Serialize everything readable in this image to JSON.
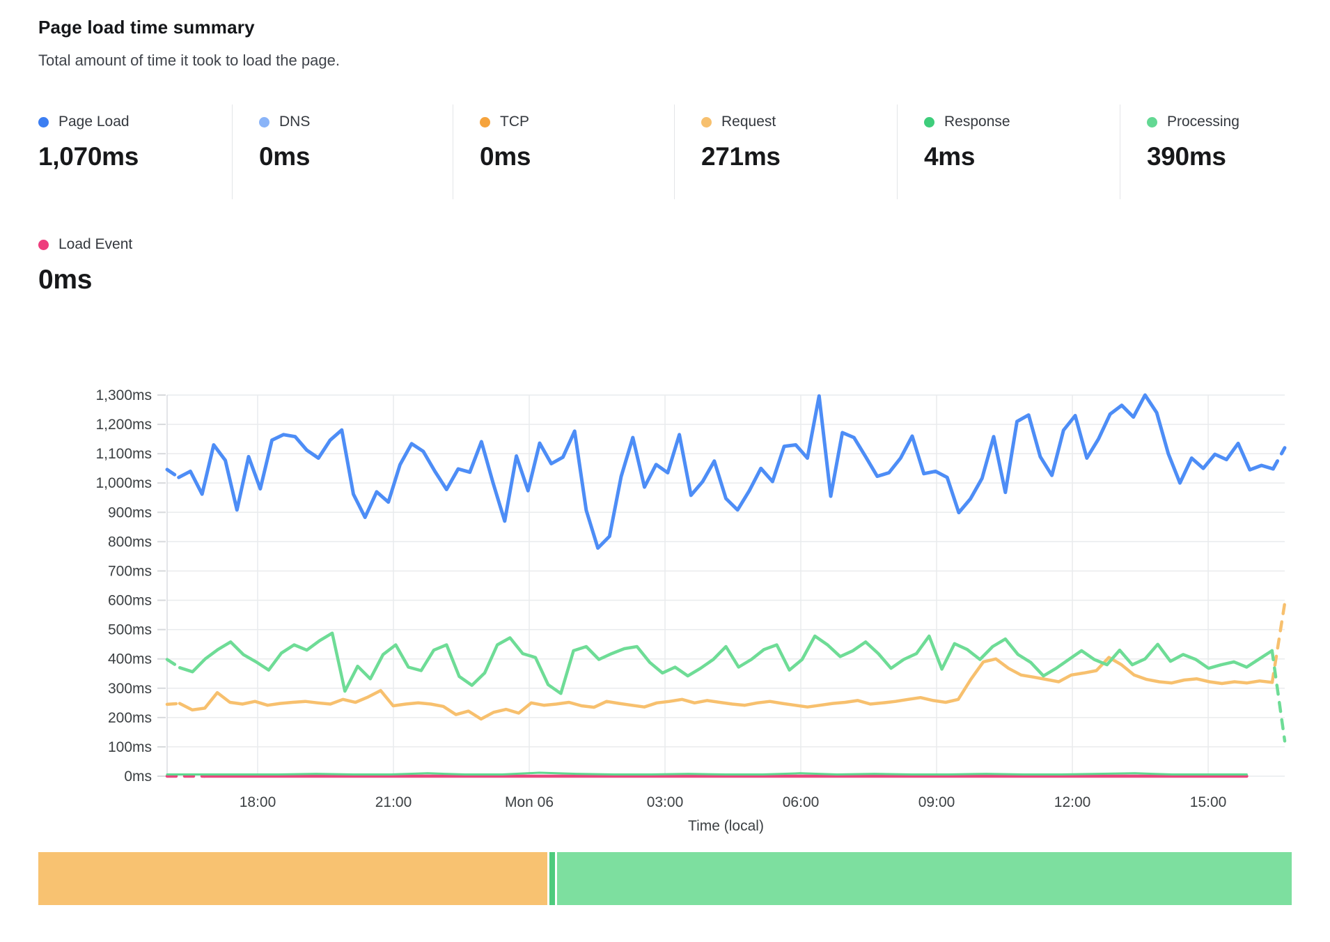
{
  "header": {
    "title": "Page load time summary",
    "subtitle": "Total amount of time it took to load the page."
  },
  "stats": [
    {
      "label": "Page Load",
      "value": "1,070ms",
      "color": "#3c7ef2"
    },
    {
      "label": "DNS",
      "value": "0ms",
      "color": "#8ab4f8"
    },
    {
      "label": "TCP",
      "value": "0ms",
      "color": "#f5a33c"
    },
    {
      "label": "Request",
      "value": "271ms",
      "color": "#f7c06e"
    },
    {
      "label": "Response",
      "value": "4ms",
      "color": "#3ecd7b"
    },
    {
      "label": "Processing",
      "value": "390ms",
      "color": "#63d893"
    }
  ],
  "stats_row2": [
    {
      "label": "Load Event",
      "value": "0ms",
      "color": "#ee3d7d"
    }
  ],
  "chart_data": {
    "type": "line",
    "title": "Page load time summary",
    "xlabel": "Time (local)",
    "ylabel": "ms",
    "ylim": [
      0,
      1300
    ],
    "grid": true,
    "legend_position": "top",
    "y_ticks": [
      {
        "v": 0,
        "label": "0ms"
      },
      {
        "v": 100,
        "label": "100ms"
      },
      {
        "v": 200,
        "label": "200ms"
      },
      {
        "v": 300,
        "label": "300ms"
      },
      {
        "v": 400,
        "label": "400ms"
      },
      {
        "v": 500,
        "label": "500ms"
      },
      {
        "v": 600,
        "label": "600ms"
      },
      {
        "v": 700,
        "label": "700ms"
      },
      {
        "v": 800,
        "label": "800ms"
      },
      {
        "v": 900,
        "label": "900ms"
      },
      {
        "v": 1000,
        "label": "1,000ms"
      },
      {
        "v": 1100,
        "label": "1,100ms"
      },
      {
        "v": 1200,
        "label": "1,200ms"
      },
      {
        "v": 1300,
        "label": "1,300ms"
      }
    ],
    "x_ticks": [
      {
        "label": "18:00",
        "f": 0.081
      },
      {
        "label": "21:00",
        "f": 0.2025
      },
      {
        "label": "Mon 06",
        "f": 0.324
      },
      {
        "label": "03:00",
        "f": 0.4455
      },
      {
        "label": "06:00",
        "f": 0.567
      },
      {
        "label": "09:00",
        "f": 0.6885
      },
      {
        "label": "12:00",
        "f": 0.81
      },
      {
        "label": "15:00",
        "f": 0.9315
      }
    ],
    "series": [
      {
        "name": "Request",
        "color": "#f7c06e",
        "width": 4.5,
        "dash_head": true,
        "dash_tail": true,
        "x_start": 0,
        "x_end": 1,
        "values": [
          245,
          248,
          226,
          232,
          285,
          252,
          246,
          255,
          242,
          248,
          252,
          255,
          250,
          246,
          262,
          252,
          270,
          292,
          240,
          246,
          250,
          246,
          238,
          210,
          222,
          195,
          218,
          228,
          215,
          250,
          242,
          246,
          252,
          240,
          235,
          255,
          248,
          242,
          236,
          250,
          255,
          262,
          250,
          258,
          252,
          246,
          242,
          250,
          255,
          248,
          242,
          236,
          242,
          248,
          252,
          258,
          246,
          250,
          255,
          262,
          268,
          258,
          252,
          262,
          330,
          390,
          400,
          368,
          345,
          338,
          330,
          322,
          345,
          352,
          360,
          405,
          380,
          345,
          330,
          322,
          318,
          328,
          332,
          322,
          316,
          322,
          318,
          325,
          320,
          590
        ]
      },
      {
        "name": "Processing",
        "color": "#6edc96",
        "width": 4.5,
        "dash_head": true,
        "dash_tail": true,
        "x_start": 0,
        "x_end": 1,
        "values": [
          398,
          370,
          356,
          400,
          432,
          458,
          415,
          390,
          362,
          420,
          448,
          430,
          462,
          488,
          290,
          375,
          332,
          415,
          448,
          372,
          360,
          430,
          448,
          340,
          310,
          352,
          448,
          472,
          418,
          405,
          312,
          282,
          428,
          442,
          398,
          418,
          435,
          442,
          388,
          352,
          372,
          342,
          368,
          398,
          442,
          372,
          398,
          432,
          448,
          362,
          398,
          478,
          448,
          408,
          428,
          458,
          418,
          368,
          398,
          418,
          478,
          365,
          452,
          432,
          398,
          442,
          468,
          415,
          388,
          342,
          368,
          398,
          428,
          398,
          380,
          430,
          380,
          400,
          450,
          392,
          415,
          398,
          368,
          380,
          390,
          372,
          400,
          428,
          120
        ]
      },
      {
        "name": "Page Load",
        "color": "#4d8df6",
        "width": 5,
        "dash_head": true,
        "dash_tail": true,
        "x_start": 0,
        "x_end": 1,
        "values": [
          1046,
          1019,
          1040,
          962,
          1130,
          1077,
          908,
          1090,
          980,
          1146,
          1165,
          1158,
          1112,
          1085,
          1146,
          1181,
          962,
          883,
          970,
          935,
          1062,
          1134,
          1108,
          1040,
          978,
          1048,
          1037,
          1141,
          1000,
          870,
          1092,
          974,
          1136,
          1066,
          1088,
          1177,
          907,
          778,
          818,
          1022,
          1155,
          986,
          1063,
          1035,
          1165,
          958,
          1005,
          1075,
          947,
          908,
          973,
          1050,
          1005,
          1125,
          1130,
          1085,
          1297,
          955,
          1172,
          1155,
          1090,
          1023,
          1035,
          1085,
          1160,
          1032,
          1040,
          1019,
          899,
          946,
          1016,
          1158,
          968,
          1210,
          1232,
          1090,
          1026,
          1180,
          1230,
          1085,
          1150,
          1235,
          1265,
          1225,
          1300,
          1240,
          1100,
          1000,
          1085,
          1050,
          1098,
          1080,
          1135,
          1045,
          1060,
          1048,
          1120
        ]
      },
      {
        "name": "Load Event",
        "color": "#e8477e",
        "width": 4.5,
        "dash_head": true,
        "dash_tail": false,
        "x_start": 0,
        "x_end": 0.966,
        "values": [
          0,
          0,
          0,
          0,
          0,
          0,
          0,
          0,
          0,
          0,
          0,
          0,
          0,
          0,
          0,
          0,
          0,
          0,
          0,
          0,
          0,
          0,
          0,
          0,
          0,
          0,
          0,
          0,
          0,
          0
        ]
      },
      {
        "name": "Response",
        "color": "#5fd88f",
        "width": 3,
        "dash_head": false,
        "dash_tail": false,
        "x_start": 0,
        "x_end": 0.966,
        "values": [
          6,
          6,
          6,
          6,
          8,
          6,
          6,
          10,
          6,
          6,
          12,
          8,
          6,
          6,
          8,
          6,
          6,
          10,
          6,
          8,
          6,
          6,
          8,
          6,
          6,
          8,
          10,
          6,
          6,
          6
        ]
      }
    ]
  },
  "timeline_strip": {
    "segments": [
      {
        "name": "request-span",
        "color": "#f8c271",
        "width_pct": 40.6
      },
      {
        "name": "divider-span",
        "color": "#4ecb7d",
        "width_pct": 0.45
      },
      {
        "name": "processing-span",
        "color": "#7ddf9f",
        "width_pct": 58.55
      }
    ]
  }
}
